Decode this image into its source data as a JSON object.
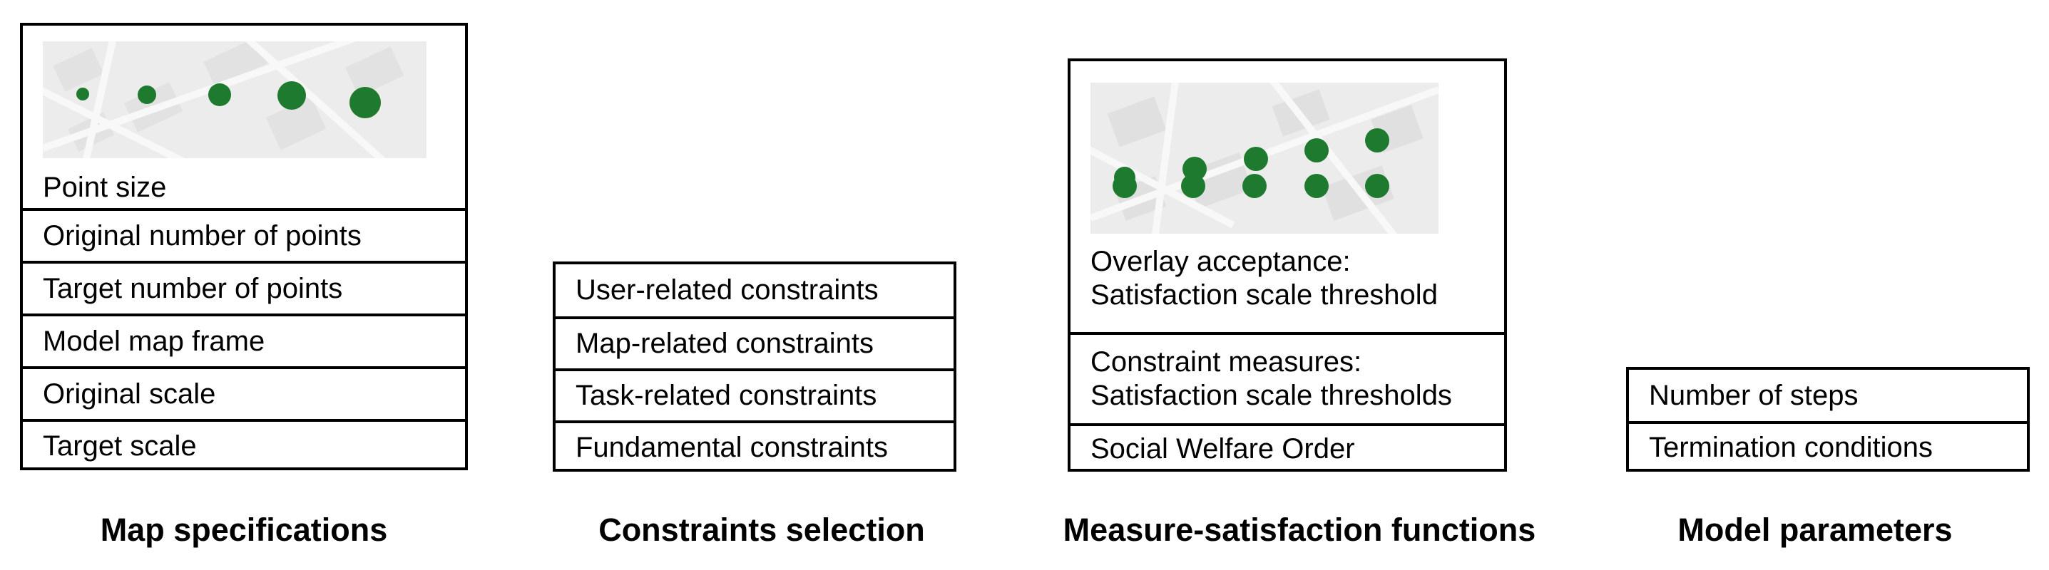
{
  "accent_color": "#1e7a2e",
  "map_specifications": {
    "title": "Map specifications",
    "point_size_label": "Point size",
    "rows": [
      "Original number of points",
      "Target number of points",
      "Model map frame",
      "Original scale",
      "Target scale"
    ]
  },
  "constraints_selection": {
    "title": "Constraints selection",
    "rows": [
      "User-related constraints",
      "Map-related constraints",
      "Task-related constraints",
      "Fundamental constraints"
    ]
  },
  "measure_satisfaction_functions": {
    "title": "Measure-satisfaction functions",
    "overlay_line1": "Overlay acceptance:",
    "overlay_line2": "Satisfaction scale threshold",
    "constraint_line1": "Constraint measures:",
    "constraint_line2": "Satisfaction scale thresholds",
    "social_welfare": "Social Welfare Order"
  },
  "model_parameters": {
    "title": "Model parameters",
    "rows": [
      "Number of steps",
      "Termination conditions"
    ]
  }
}
